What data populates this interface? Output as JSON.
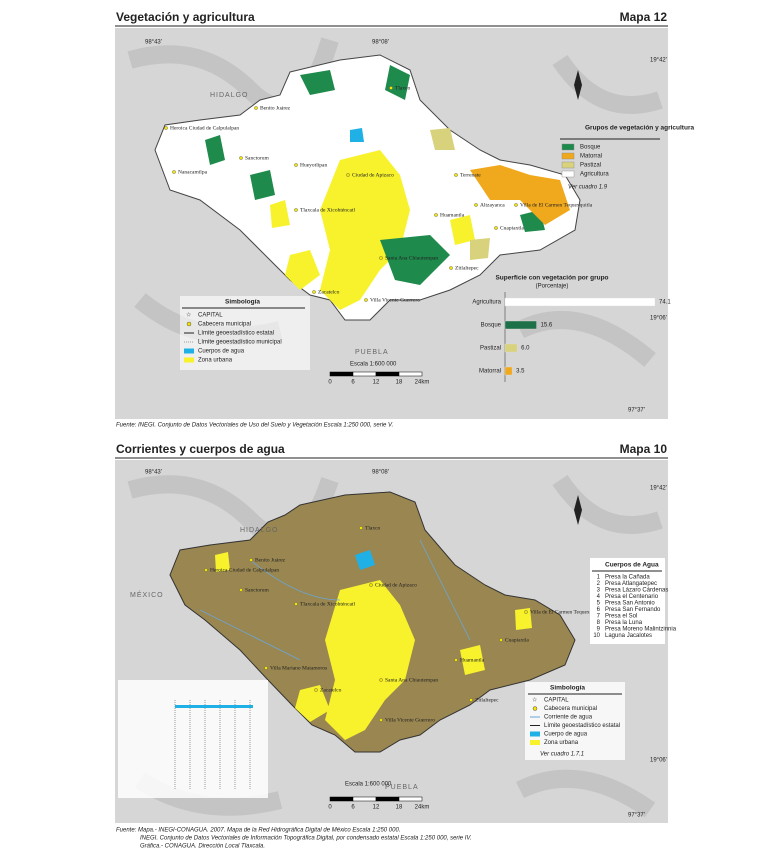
{
  "map1": {
    "title": "Vegetación y agricultura",
    "map_number": "Mapa 12",
    "states": [
      "HIDALGO",
      "PUEBLA"
    ],
    "coords": [
      "98°43'",
      "98°08'",
      "97°37'",
      "19°42'",
      "19°06'"
    ],
    "places": [
      "Tlaxco",
      "Benito Juárez",
      "Hueyotlipan",
      "Sanctorum",
      "Heroica Ciudad de Calpulalpan",
      "Nanacamilpa",
      "Ciudad de Apizaco",
      "Tlaxcala de Xicohténcatl",
      "Terrenate",
      "Altzayanca",
      "Huamantla",
      "Villa de El Carmen Tequexquitla",
      "Cuapiaxtla",
      "Santa Ana Chiautempan",
      "Zitlaltepec",
      "Villa Vicente Guerrero",
      "Zacatelco"
    ],
    "legend_title": "Grupos de vegetación y agricultura",
    "legend": [
      {
        "name": "Bosque",
        "color": "#1e8a4c"
      },
      {
        "name": "Matorral",
        "color": "#f0a81c"
      },
      {
        "name": "Pastizal",
        "color": "#d8d27c"
      },
      {
        "name": "Agricultura",
        "color": "#ffffff"
      }
    ],
    "legend_note": "Ver cuadro 1.9",
    "chart": {
      "type": "bar",
      "title": "Superficie con vegetación por grupo",
      "subtitle": "(Porcentaje)",
      "categories": [
        "Agricultura",
        "Bosque",
        "Pastizal",
        "Matorral"
      ],
      "values": [
        74.1,
        15.6,
        6.0,
        3.5
      ],
      "value_labels": [
        "74.1",
        "15.6",
        "6.0",
        "3.5"
      ],
      "colors": [
        "#ffffff",
        "#1e7048",
        "#d8d27c",
        "#f0a81c"
      ]
    },
    "symbology_title": "Simbología",
    "symbology": [
      "CAPITAL",
      "Cabecera municipal",
      "Límite geoestadístico estatal",
      "Límite geoestadístico municipal",
      "Cuerpos de agua",
      "Zona urbana"
    ],
    "scale": "Escala 1:600 000",
    "scale_labels": [
      "0",
      "6",
      "12",
      "18",
      "24km"
    ],
    "source": "Fuente: INEGI. Conjunto de Datos Vectoriales de Uso del Suelo y Vegetación Escala 1:250 000, serie V."
  },
  "map2": {
    "title": "Corrientes y cuerpos de agua",
    "map_number": "Mapa 10",
    "states": [
      "HIDALGO",
      "MÉXICO",
      "PUEBLA"
    ],
    "coords": [
      "98°43'",
      "98°08'",
      "97°37'",
      "19°42'",
      "19°06'"
    ],
    "places": [
      "Tlaxco",
      "Benito Juárez",
      "Heroica Ciudad de Calpulalpan",
      "Sanctorum",
      "Ciudad de Apizaco",
      "Tlaxcala de Xicohténcatl",
      "Huamantla",
      "Villa de El Carmen Tequexquitla",
      "Cuapiaxtla",
      "Villa Mariano Matamoros",
      "Santa Ana Chiautempan",
      "Zacatelco",
      "Zitlaltepec",
      "Villa Vicente Guerrero"
    ],
    "water_title": "Cuerpos de Agua",
    "water_bodies": [
      "Presa la Cañada",
      "Presa Atlangatepec",
      "Presa Lázaro Cárdenas",
      "Presa el Centenario",
      "Presa San Antonio",
      "Presa San Fernando",
      "Presa el Sol",
      "Presa la Luna",
      "Presa Moreno Malintzinnia",
      "Laguna Jacalotes"
    ],
    "water_numbers": [
      "1",
      "2",
      "3",
      "4",
      "5",
      "6",
      "7",
      "8",
      "9",
      "10"
    ],
    "symbology_title": "Simbología",
    "symbology": [
      "CAPITAL",
      "Cabecera municipal",
      "Corriente de agua",
      "Límite geoestadístico estatal",
      "Cuerpo de agua",
      "Zona urbana"
    ],
    "symbology_note": "Ver cuadro 1.7.1",
    "scale": "Escala 1:600 000",
    "scale_labels": [
      "0",
      "6",
      "12",
      "18",
      "24km"
    ],
    "source": [
      "Fuente: Mapa.- INEGI-CONAGUA. 2007. Mapa de la Red Hidrográfica Digital de México Escala 1:250 000.",
      "INEGI. Conjunto de Datos Vectoriales de Información Topográfica Digital, por condensado estatal Escala 1:250 000, serie IV.",
      "Gráfica.- CONAGUA. Dirección Local Tlaxcala."
    ]
  }
}
